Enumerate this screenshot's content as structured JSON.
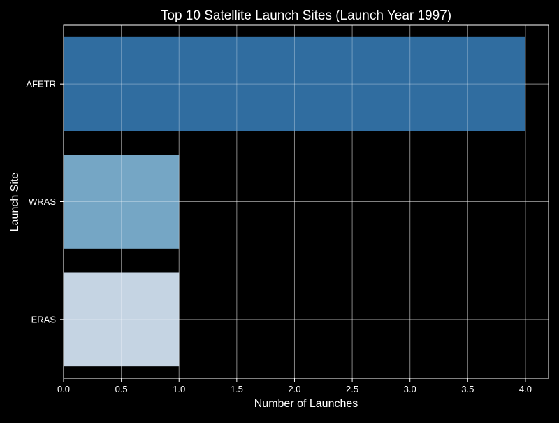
{
  "chart_data": {
    "type": "bar",
    "orientation": "horizontal",
    "title": "Top 10 Satellite Launch Sites (Launch Year 1997)",
    "xlabel": "Number of Launches",
    "ylabel": "Launch Site",
    "categories": [
      "AFETR",
      "WRAS",
      "ERAS"
    ],
    "values": [
      4,
      1,
      1
    ],
    "bar_colors": [
      "#3271a5",
      "#79abcb",
      "#cbdbea"
    ],
    "xlim": [
      0,
      4.2
    ],
    "xticks": [
      0,
      0.5,
      1,
      1.5,
      2,
      2.5,
      3,
      3.5,
      4
    ],
    "xtick_labels": [
      "0.0",
      "0.5",
      "1.0",
      "1.5",
      "2.0",
      "2.5",
      "3.0",
      "3.5",
      "4.0"
    ],
    "grid": true,
    "legend": "none",
    "background": "#000000",
    "text_color": "#ffffff"
  }
}
